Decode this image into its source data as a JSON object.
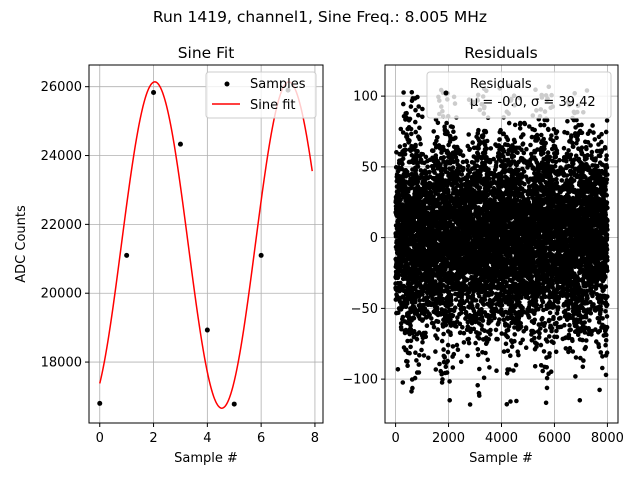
{
  "figure": {
    "suptitle": "Run 1419, channel1, Sine Freq.: 8.005 MHz"
  },
  "chart_data": [
    {
      "type": "scatter",
      "title": "Sine Fit",
      "xlabel": "Sample #",
      "ylabel": "ADC Counts",
      "xlim": [
        -0.4,
        8.3
      ],
      "ylim": [
        16230,
        26630
      ],
      "xticks": [
        "0",
        "2",
        "4",
        "6",
        "8"
      ],
      "yticks": [
        "18000",
        "20000",
        "22000",
        "24000",
        "26000"
      ],
      "grid": true,
      "legend_position": "top-right",
      "series": [
        {
          "name": "Samples",
          "kind": "marker",
          "color": "#000000",
          "x": [
            0,
            1,
            2,
            3,
            4,
            5,
            6,
            7
          ],
          "y": [
            16800,
            21100,
            25830,
            24330,
            18930,
            16780,
            21100,
            25900
          ]
        },
        {
          "name": "Sine fit",
          "kind": "line",
          "color": "#ff0000",
          "offset": 21400,
          "amplitude": 4740,
          "period": 4.98,
          "phase_deg": -58,
          "x_start": 0,
          "x_end": 7.9
        }
      ]
    },
    {
      "type": "scatter",
      "title": "Residuals",
      "xlabel": "Sample #",
      "ylabel": "",
      "xlim": [
        -400,
        8400
      ],
      "ylim": [
        -131,
        122
      ],
      "xticks": [
        "0",
        "2000",
        "4000",
        "6000",
        "8000"
      ],
      "yticks": [
        "−100",
        "−50",
        "0",
        "50",
        "100"
      ],
      "grid": true,
      "legend_position": "top-right",
      "stats": {
        "mean": -0.0,
        "sigma": 39.42
      },
      "series": [
        {
          "name": "Residuals",
          "kind": "marker",
          "color": "#000000",
          "n_points": 8000,
          "lobe_period": 1250,
          "x_range": [
            0,
            8000
          ]
        }
      ],
      "legend_lines": [
        "Residuals",
        "μ = -0.0, σ = 39.42"
      ]
    }
  ]
}
